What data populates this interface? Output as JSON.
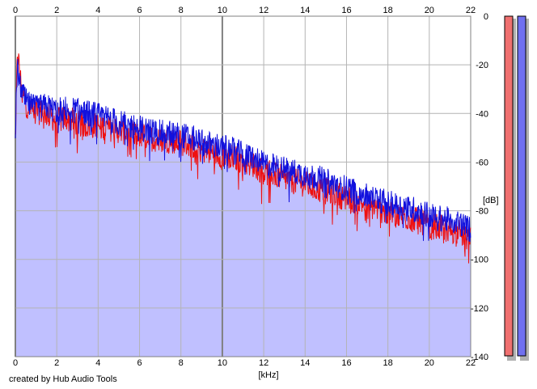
{
  "chart_data": {
    "type": "area",
    "title": "",
    "xlabel": "[kHz]",
    "ylabel": "[dB]",
    "xlim": [
      0,
      22
    ],
    "ylim": [
      -140,
      0
    ],
    "x_ticks": [
      "0",
      "2",
      "4",
      "6",
      "8",
      "10",
      "12",
      "14",
      "16",
      "18",
      "20",
      "22"
    ],
    "y_ticks": [
      "0",
      "-20",
      "-40",
      "-60",
      "-80",
      "-100",
      "-120",
      "-140"
    ],
    "grid": true,
    "legend": "none",
    "series": [
      {
        "color": "#ee1111",
        "x": [
          0.0,
          0.1,
          0.2,
          0.3,
          0.5,
          0.75,
          1.0,
          1.5,
          2.0,
          2.5,
          3.0,
          3.5,
          4.0,
          4.5,
          5.0,
          5.5,
          6.0,
          6.5,
          7.0,
          7.5,
          8.0,
          8.5,
          9.0,
          9.5,
          10.0,
          10.5,
          11.0,
          11.5,
          12.0,
          12.5,
          13.0,
          13.5,
          14.0,
          14.5,
          15.0,
          15.5,
          16.0,
          16.5,
          17.0,
          17.5,
          18.0,
          18.5,
          19.0,
          19.5,
          20.0,
          20.5,
          21.0,
          21.5,
          22.0
        ],
        "values": [
          -50,
          -14,
          -22,
          -30,
          -36,
          -38,
          -39,
          -40,
          -43,
          -42,
          -44,
          -45,
          -45,
          -46,
          -47,
          -48,
          -49,
          -50,
          -51,
          -51,
          -52,
          -53,
          -55,
          -56,
          -57,
          -58,
          -60,
          -61,
          -64,
          -65,
          -67,
          -68,
          -69,
          -71,
          -72,
          -73,
          -75,
          -76,
          -78,
          -79,
          -81,
          -82,
          -83,
          -84,
          -86,
          -87,
          -88,
          -89,
          -92
        ]
      },
      {
        "color": "#1111dd",
        "x": [
          0.0,
          0.1,
          0.2,
          0.3,
          0.5,
          0.75,
          1.0,
          1.5,
          2.0,
          2.5,
          3.0,
          3.5,
          4.0,
          4.5,
          5.0,
          5.5,
          6.0,
          6.5,
          7.0,
          7.5,
          8.0,
          8.5,
          9.0,
          9.5,
          10.0,
          10.5,
          11.0,
          11.5,
          12.0,
          12.5,
          13.0,
          13.5,
          14.0,
          14.5,
          15.0,
          15.5,
          16.0,
          16.5,
          17.0,
          17.5,
          18.0,
          18.5,
          19.0,
          19.5,
          20.0,
          20.5,
          21.0,
          21.5,
          22.0
        ],
        "values": [
          -46,
          -22,
          -26,
          -31,
          -35,
          -37,
          -38,
          -37,
          -39,
          -38,
          -39,
          -40,
          -41,
          -42,
          -44,
          -45,
          -46,
          -47,
          -48,
          -48,
          -49,
          -50,
          -52,
          -53,
          -54,
          -55,
          -57,
          -58,
          -61,
          -62,
          -63,
          -64,
          -65,
          -66,
          -68,
          -69,
          -71,
          -72,
          -74,
          -75,
          -77,
          -78,
          -79,
          -80,
          -82,
          -83,
          -84,
          -85,
          -88
        ]
      }
    ],
    "area_fill": "#c0c0ff",
    "meters": [
      {
        "color": "#f07070"
      },
      {
        "color": "#7070f0"
      }
    ]
  },
  "footer": {
    "credit": "created by Hub Audio Tools"
  }
}
